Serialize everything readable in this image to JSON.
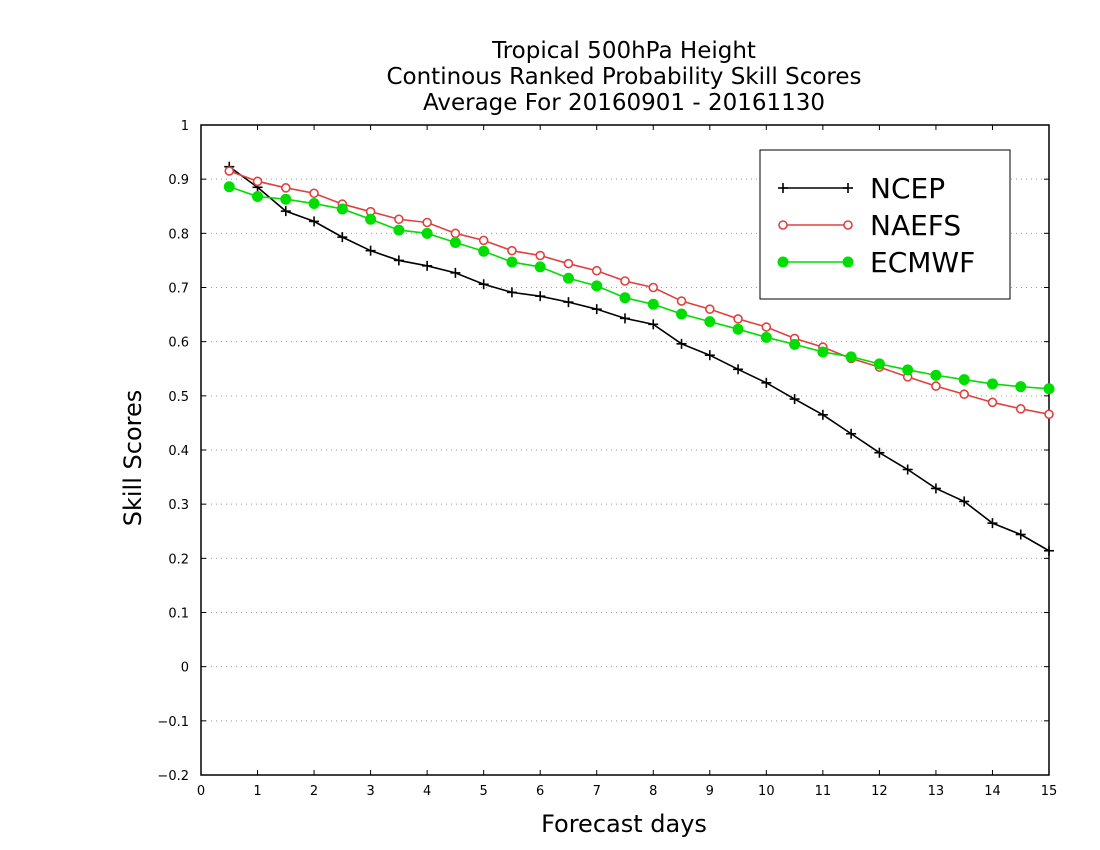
{
  "chart_data": {
    "type": "line",
    "title": [
      "Tropical 500hPa Height",
      "Continous Ranked Probability Skill Scores",
      "Average For 20160901 - 20161130"
    ],
    "xlabel": "Forecast days",
    "ylabel": "Skill Scores",
    "xlim": [
      0,
      15
    ],
    "ylim": [
      -0.2,
      1
    ],
    "xticks": [
      "0",
      "1",
      "2",
      "3",
      "4",
      "5",
      "6",
      "7",
      "8",
      "9",
      "10",
      "11",
      "12",
      "13",
      "14",
      "15"
    ],
    "yticks": [
      "−0.2",
      "−0.1",
      "0",
      "0.1",
      "0.2",
      "0.3",
      "0.4",
      "0.5",
      "0.6",
      "0.7",
      "0.8",
      "0.9",
      "1"
    ],
    "grid": true,
    "legend_position": "top-right",
    "x": [
      0.5,
      1,
      1.5,
      2,
      2.5,
      3,
      3.5,
      4,
      4.5,
      5,
      5.5,
      6,
      6.5,
      7,
      7.5,
      8,
      8.5,
      9,
      9.5,
      10,
      10.5,
      11,
      11.5,
      12,
      12.5,
      13,
      13.5,
      14,
      14.5,
      15
    ],
    "series": [
      {
        "name": "NCEP",
        "color": "#000000",
        "marker": "plus",
        "values": [
          0.923,
          0.885,
          0.841,
          0.822,
          0.793,
          0.768,
          0.75,
          0.74,
          0.727,
          0.706,
          0.691,
          0.684,
          0.673,
          0.66,
          0.643,
          0.632,
          0.596,
          0.575,
          0.549,
          0.524,
          0.494,
          0.465,
          0.43,
          0.395,
          0.364,
          0.329,
          0.305,
          0.265,
          0.244,
          0.214
        ]
      },
      {
        "name": "NAEFS",
        "color": "#e04040",
        "marker": "open-circle",
        "values": [
          0.915,
          0.896,
          0.884,
          0.874,
          0.854,
          0.84,
          0.826,
          0.82,
          0.8,
          0.787,
          0.768,
          0.759,
          0.744,
          0.731,
          0.712,
          0.7,
          0.675,
          0.66,
          0.642,
          0.627,
          0.606,
          0.59,
          0.569,
          0.553,
          0.535,
          0.518,
          0.503,
          0.488,
          0.476,
          0.466
        ]
      },
      {
        "name": "ECMWF",
        "color": "#00dd00",
        "marker": "filled-circle",
        "values": [
          0.886,
          0.868,
          0.863,
          0.855,
          0.845,
          0.826,
          0.806,
          0.8,
          0.783,
          0.767,
          0.747,
          0.738,
          0.717,
          0.703,
          0.681,
          0.669,
          0.651,
          0.637,
          0.623,
          0.608,
          0.595,
          0.581,
          0.572,
          0.559,
          0.548,
          0.538,
          0.53,
          0.522,
          0.517,
          0.513
        ]
      }
    ]
  }
}
